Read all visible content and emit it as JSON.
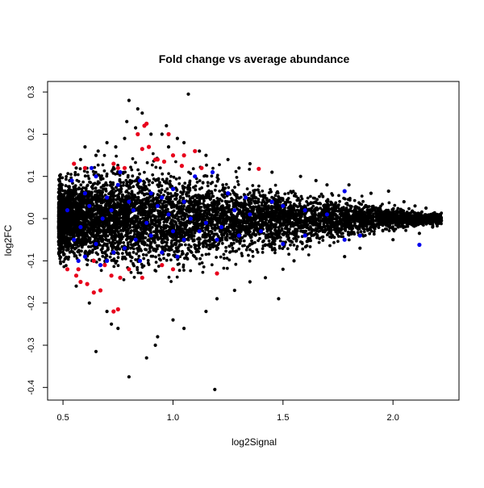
{
  "chart_data": {
    "type": "scatter",
    "title": "Fold change vs average abundance",
    "xlabel": "log2Signal",
    "ylabel": "log2FC",
    "xlim": [
      0.43,
      2.3
    ],
    "ylim": [
      -0.43,
      0.325
    ],
    "x_ticks": [
      "0.5",
      "1.0",
      "1.5",
      "2.0"
    ],
    "y_ticks": [
      "-0.4",
      "-0.3",
      "-0.2",
      "-0.1",
      "0.0",
      "0.1",
      "0.2",
      "0.3"
    ],
    "grid": false,
    "legend": "none",
    "series": [
      {
        "color": "#000000",
        "points": [
          [
            0.8,
            0.28
          ],
          [
            1.07,
            0.295
          ],
          [
            0.84,
            0.26
          ],
          [
            0.86,
            0.25
          ],
          [
            0.79,
            0.23
          ],
          [
            0.97,
            0.22
          ],
          [
            1.02,
            0.19
          ],
          [
            1.05,
            0.18
          ],
          [
            1.12,
            0.16
          ],
          [
            1.25,
            0.14
          ],
          [
            1.35,
            0.13
          ],
          [
            1.58,
            0.1
          ],
          [
            1.65,
            0.09
          ],
          [
            1.8,
            0.08
          ],
          [
            1.98,
            0.065
          ],
          [
            2.05,
            0.04
          ],
          [
            2.15,
            0.025
          ],
          [
            0.6,
            0.17
          ],
          [
            0.65,
            0.15
          ],
          [
            0.95,
            0.2
          ],
          [
            1.15,
            0.15
          ],
          [
            1.3,
            0.12
          ],
          [
            1.45,
            0.11
          ],
          [
            1.7,
            0.08
          ],
          [
            1.9,
            0.06
          ],
          [
            2.1,
            0.03
          ],
          [
            2.2,
            0.01
          ],
          [
            2.22,
            -0.005
          ],
          [
            2.18,
            -0.02
          ],
          [
            2.12,
            -0.035
          ],
          [
            2.0,
            -0.05
          ],
          [
            1.85,
            -0.07
          ],
          [
            1.78,
            -0.09
          ],
          [
            1.55,
            -0.1
          ],
          [
            1.5,
            -0.12
          ],
          [
            1.42,
            -0.14
          ],
          [
            1.48,
            -0.19
          ],
          [
            1.35,
            -0.15
          ],
          [
            1.28,
            -0.17
          ],
          [
            1.2,
            -0.19
          ],
          [
            1.15,
            -0.22
          ],
          [
            1.05,
            -0.26
          ],
          [
            1.0,
            -0.24
          ],
          [
            0.93,
            -0.28
          ],
          [
            0.92,
            -0.3
          ],
          [
            0.88,
            -0.33
          ],
          [
            0.8,
            -0.375
          ],
          [
            1.19,
            -0.405
          ],
          [
            0.65,
            -0.315
          ],
          [
            0.75,
            -0.26
          ],
          [
            0.72,
            -0.25
          ],
          [
            0.7,
            -0.22
          ],
          [
            0.62,
            -0.2
          ],
          [
            0.56,
            -0.16
          ],
          [
            0.52,
            -0.12
          ],
          [
            0.5,
            -0.08
          ],
          [
            0.49,
            -0.05
          ],
          [
            0.48,
            -0.02
          ],
          [
            0.49,
            0.02
          ],
          [
            0.5,
            0.05
          ],
          [
            0.53,
            0.09
          ],
          [
            0.56,
            0.12
          ],
          [
            0.58,
            0.14
          ],
          [
            0.66,
            0.16
          ],
          [
            0.7,
            0.18
          ],
          [
            0.74,
            0.17
          ],
          [
            0.78,
            0.19
          ],
          [
            0.9,
            0.2
          ],
          [
            0.83,
            0.215
          ],
          [
            0.98,
            0.17
          ]
        ]
      },
      {
        "color": "#e8001c",
        "points": [
          [
            0.84,
            0.2
          ],
          [
            0.87,
            0.22
          ],
          [
            0.88,
            0.225
          ],
          [
            0.98,
            0.2
          ],
          [
            0.89,
            0.17
          ],
          [
            0.86,
            0.165
          ],
          [
            1.1,
            0.16
          ],
          [
            1.05,
            0.15
          ],
          [
            1.0,
            0.15
          ],
          [
            0.92,
            0.14
          ],
          [
            0.93,
            0.14
          ],
          [
            0.73,
            0.13
          ],
          [
            0.55,
            0.13
          ],
          [
            0.6,
            0.12
          ],
          [
            0.75,
            0.12
          ],
          [
            0.78,
            0.12
          ],
          [
            0.96,
            0.135
          ],
          [
            1.13,
            0.12
          ],
          [
            1.39,
            0.118
          ],
          [
            1.04,
            0.125
          ],
          [
            0.52,
            -0.12
          ],
          [
            0.56,
            -0.135
          ],
          [
            0.58,
            -0.15
          ],
          [
            0.61,
            -0.155
          ],
          [
            0.64,
            -0.175
          ],
          [
            0.67,
            -0.17
          ],
          [
            0.72,
            -0.135
          ],
          [
            0.76,
            -0.14
          ],
          [
            0.8,
            -0.12
          ],
          [
            0.86,
            -0.14
          ],
          [
            0.95,
            -0.11
          ],
          [
            1.0,
            -0.12
          ],
          [
            1.2,
            -0.13
          ],
          [
            0.64,
            -0.1
          ],
          [
            0.69,
            -0.11
          ],
          [
            0.75,
            -0.215
          ],
          [
            0.73,
            -0.22
          ],
          [
            0.57,
            -0.12
          ]
        ]
      },
      {
        "color": "#0000ee",
        "points": [
          [
            0.54,
            0.09
          ],
          [
            0.6,
            0.06
          ],
          [
            0.65,
            0.1
          ],
          [
            0.7,
            0.05
          ],
          [
            0.75,
            0.08
          ],
          [
            0.8,
            0.04
          ],
          [
            0.85,
            0.09
          ],
          [
            0.9,
            0.06
          ],
          [
            0.95,
            0.05
          ],
          [
            1.0,
            0.07
          ],
          [
            1.05,
            0.04
          ],
          [
            1.1,
            0.1
          ],
          [
            1.18,
            0.11
          ],
          [
            1.25,
            0.06
          ],
          [
            1.33,
            0.05
          ],
          [
            1.45,
            0.04
          ],
          [
            1.5,
            0.03
          ],
          [
            1.78,
            0.065
          ],
          [
            1.6,
            0.02
          ],
          [
            1.7,
            0.01
          ],
          [
            0.55,
            -0.05
          ],
          [
            0.6,
            -0.09
          ],
          [
            0.65,
            -0.06
          ],
          [
            0.7,
            -0.1
          ],
          [
            0.73,
            -0.08
          ],
          [
            0.78,
            -0.07
          ],
          [
            0.85,
            -0.1
          ],
          [
            0.9,
            -0.04
          ],
          [
            0.95,
            -0.08
          ],
          [
            1.0,
            -0.03
          ],
          [
            1.05,
            -0.05
          ],
          [
            1.12,
            -0.03
          ],
          [
            1.2,
            -0.05
          ],
          [
            1.3,
            -0.04
          ],
          [
            1.4,
            -0.03
          ],
          [
            1.5,
            -0.06
          ],
          [
            1.6,
            -0.04
          ],
          [
            1.78,
            -0.05
          ],
          [
            2.12,
            -0.062
          ],
          [
            1.85,
            -0.04
          ],
          [
            0.52,
            0.02
          ],
          [
            0.58,
            -0.02
          ],
          [
            0.62,
            0.03
          ],
          [
            0.68,
            0.0
          ],
          [
            0.72,
            0.02
          ],
          [
            0.88,
            -0.01
          ],
          [
            0.98,
            0.01
          ],
          [
            1.08,
            0.0
          ],
          [
            1.15,
            -0.01
          ],
          [
            1.28,
            0.02
          ],
          [
            0.63,
            0.12
          ],
          [
            0.76,
            0.11
          ],
          [
            0.82,
            0.02
          ],
          [
            0.93,
            0.03
          ],
          [
            1.22,
            -0.02
          ],
          [
            1.35,
            0.01
          ],
          [
            0.57,
            -0.1
          ],
          [
            0.67,
            -0.11
          ],
          [
            0.83,
            -0.05
          ],
          [
            1.02,
            -0.09
          ]
        ]
      }
    ]
  }
}
